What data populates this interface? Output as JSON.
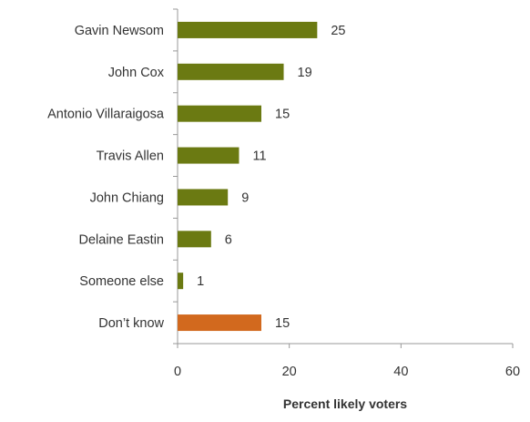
{
  "chart_data": {
    "type": "bar",
    "orientation": "horizontal",
    "categories": [
      "Gavin Newsom",
      "John Cox",
      "Antonio Villaraigosa",
      "Travis Allen",
      "John Chiang",
      "Delaine Eastin",
      "Someone else",
      "Don’t know"
    ],
    "values": [
      25,
      19,
      15,
      11,
      9,
      6,
      1,
      15
    ],
    "value_labels": [
      "25",
      "19",
      "15",
      "11",
      "9",
      "6",
      "1",
      "15"
    ],
    "bar_colors": [
      "#6b7a12",
      "#6b7a12",
      "#6b7a12",
      "#6b7a12",
      "#6b7a12",
      "#6b7a12",
      "#6b7a12",
      "#d2691e"
    ],
    "xlabel": "Percent likely voters",
    "ylabel": "",
    "title": "",
    "xlim": [
      0,
      60
    ],
    "x_ticks": [
      0,
      20,
      40,
      60
    ],
    "x_tick_labels": [
      "0",
      "20",
      "40",
      "60"
    ],
    "grid": false,
    "legend": "none"
  },
  "colors": {
    "primary_bar": "#6b7a12",
    "highlight_bar": "#d2691e",
    "axis": "#999999",
    "text": "#333333"
  }
}
